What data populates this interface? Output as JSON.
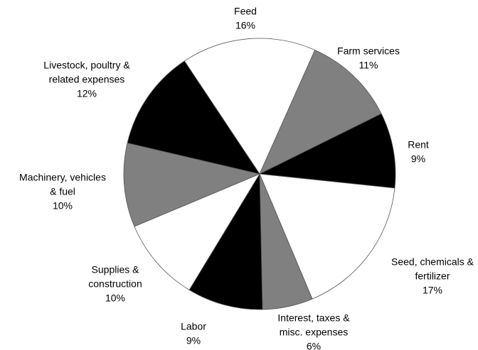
{
  "chart_data": {
    "type": "pie",
    "categories": [
      [
        "Feed"
      ],
      [
        "Farm services"
      ],
      [
        "Rent"
      ],
      [
        "Seed, chemicals &",
        "fertilizer"
      ],
      [
        "Interest, taxes &",
        "misc. expenses"
      ],
      [
        "Labor"
      ],
      [
        "Supplies &",
        "construction"
      ],
      [
        "Machinery, vehicles",
        "& fuel"
      ],
      [
        "Livestock, poultry &",
        "related expenses"
      ]
    ],
    "values": [
      16,
      11,
      9,
      17,
      6,
      9,
      10,
      10,
      12
    ],
    "value_labels": [
      "16%",
      "11%",
      "9%",
      "17%",
      "6%",
      "9%",
      "10%",
      "10%",
      "12%"
    ],
    "colors": [
      "#ffffff",
      "#808080",
      "#000000",
      "#ffffff",
      "#808080",
      "#000000",
      "#ffffff",
      "#808080",
      "#000000"
    ]
  }
}
